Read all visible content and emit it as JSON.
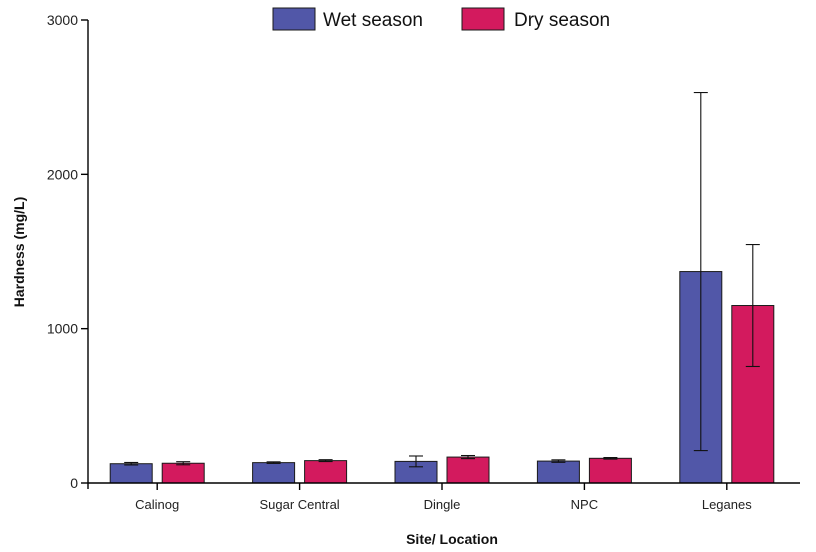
{
  "chart_data": {
    "type": "bar",
    "title": "",
    "xlabel": "Site/ Location",
    "ylabel": "Hardness (mg/L)",
    "ylim": [
      0,
      3000
    ],
    "yticks": [
      "0",
      "1000",
      "2000",
      "3000"
    ],
    "categories": [
      "Calinog",
      "Sugar Central",
      "Dingle",
      "NPC",
      "Leganes"
    ],
    "series": [
      {
        "name": "Wet season",
        "color": "#5157a8",
        "values": [
          125,
          132,
          140,
          142,
          1370
        ],
        "error": [
          8,
          5,
          35,
          8,
          1160
        ]
      },
      {
        "name": "Dry season",
        "color": "#d31a5e",
        "values": [
          128,
          145,
          168,
          160,
          1150
        ],
        "error": [
          10,
          6,
          10,
          5,
          395
        ]
      }
    ],
    "legend_position": "top-center",
    "grid": false
  }
}
